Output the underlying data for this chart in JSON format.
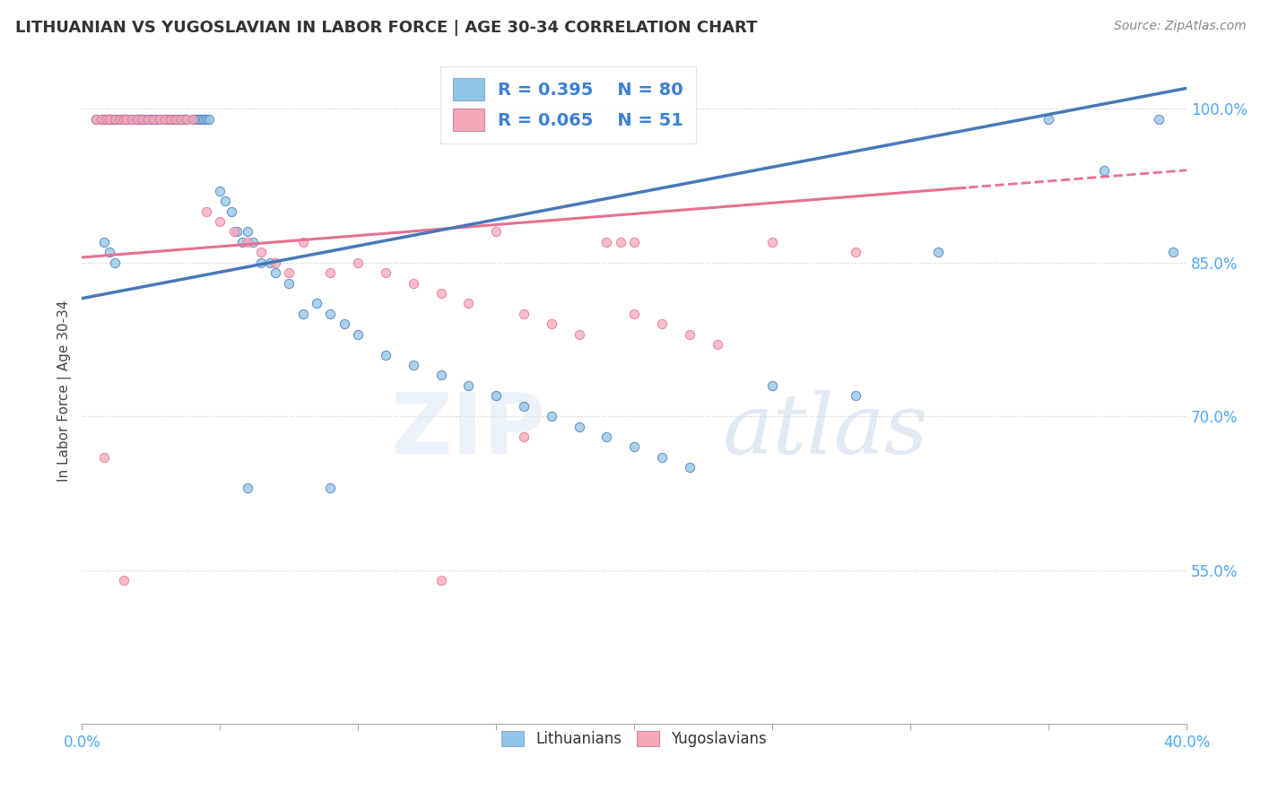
{
  "title": "LITHUANIAN VS YUGOSLAVIAN IN LABOR FORCE | AGE 30-34 CORRELATION CHART",
  "source": "Source: ZipAtlas.com",
  "ylabel": "In Labor Force | Age 30-34",
  "xlim": [
    0.0,
    0.4
  ],
  "ylim": [
    0.4,
    1.05
  ],
  "yticks": [
    0.55,
    0.7,
    0.85,
    1.0
  ],
  "ytick_labels": [
    "55.0%",
    "70.0%",
    "85.0%",
    "100.0%"
  ],
  "xticks": [
    0.0,
    0.05,
    0.1,
    0.15,
    0.2,
    0.25,
    0.3,
    0.35,
    0.4
  ],
  "xtick_left_label": "0.0%",
  "xtick_right_label": "40.0%",
  "background_color": "#ffffff",
  "legend_r_blue": "R = 0.395",
  "legend_n_blue": "N = 80",
  "legend_r_pink": "R = 0.065",
  "legend_n_pink": "N = 51",
  "blue_color": "#90c4e8",
  "pink_color": "#f4a8b8",
  "blue_line_color": "#4878b8",
  "pink_line_color": "#e87090",
  "dot_size": 55,
  "blue_x": [
    0.005,
    0.007,
    0.008,
    0.009,
    0.01,
    0.01,
    0.011,
    0.012,
    0.013,
    0.014,
    0.015,
    0.016,
    0.018,
    0.02,
    0.02,
    0.021,
    0.022,
    0.023,
    0.024,
    0.025,
    0.025,
    0.026,
    0.027,
    0.028,
    0.03,
    0.031,
    0.032,
    0.033,
    0.034,
    0.035,
    0.036,
    0.037,
    0.038,
    0.04,
    0.041,
    0.042,
    0.043,
    0.044,
    0.045,
    0.046,
    0.05,
    0.052,
    0.054,
    0.056,
    0.058,
    0.06,
    0.062,
    0.065,
    0.068,
    0.07,
    0.075,
    0.08,
    0.085,
    0.09,
    0.095,
    0.1,
    0.11,
    0.12,
    0.13,
    0.14,
    0.15,
    0.16,
    0.17,
    0.18,
    0.19,
    0.2,
    0.21,
    0.22,
    0.25,
    0.28,
    0.31,
    0.35,
    0.37,
    0.39,
    0.395,
    0.008,
    0.01,
    0.012,
    0.06,
    0.09
  ],
  "blue_y": [
    0.99,
    0.99,
    0.99,
    0.99,
    0.99,
    0.99,
    0.99,
    0.99,
    0.99,
    0.99,
    0.99,
    0.99,
    0.99,
    0.99,
    0.99,
    0.99,
    0.99,
    0.99,
    0.99,
    0.99,
    0.99,
    0.99,
    0.99,
    0.99,
    0.99,
    0.99,
    0.99,
    0.99,
    0.99,
    0.99,
    0.99,
    0.99,
    0.99,
    0.99,
    0.99,
    0.99,
    0.99,
    0.99,
    0.99,
    0.99,
    0.92,
    0.91,
    0.9,
    0.88,
    0.87,
    0.88,
    0.87,
    0.85,
    0.85,
    0.84,
    0.83,
    0.8,
    0.81,
    0.8,
    0.79,
    0.78,
    0.76,
    0.75,
    0.74,
    0.73,
    0.72,
    0.71,
    0.7,
    0.69,
    0.68,
    0.67,
    0.66,
    0.65,
    0.73,
    0.72,
    0.86,
    0.99,
    0.94,
    0.99,
    0.86,
    0.87,
    0.86,
    0.85,
    0.63,
    0.63
  ],
  "pink_x": [
    0.005,
    0.007,
    0.009,
    0.01,
    0.012,
    0.014,
    0.015,
    0.016,
    0.018,
    0.02,
    0.022,
    0.024,
    0.026,
    0.028,
    0.03,
    0.032,
    0.034,
    0.036,
    0.038,
    0.04,
    0.045,
    0.05,
    0.055,
    0.06,
    0.065,
    0.07,
    0.075,
    0.08,
    0.09,
    0.1,
    0.11,
    0.12,
    0.13,
    0.14,
    0.15,
    0.16,
    0.17,
    0.18,
    0.19,
    0.2,
    0.21,
    0.22,
    0.23,
    0.25,
    0.28,
    0.008,
    0.015,
    0.13,
    0.2,
    0.16,
    0.195
  ],
  "pink_y": [
    0.99,
    0.99,
    0.99,
    0.99,
    0.99,
    0.99,
    0.99,
    0.99,
    0.99,
    0.99,
    0.99,
    0.99,
    0.99,
    0.99,
    0.99,
    0.99,
    0.99,
    0.99,
    0.99,
    0.99,
    0.9,
    0.89,
    0.88,
    0.87,
    0.86,
    0.85,
    0.84,
    0.87,
    0.84,
    0.85,
    0.84,
    0.83,
    0.82,
    0.81,
    0.88,
    0.8,
    0.79,
    0.78,
    0.87,
    0.8,
    0.79,
    0.78,
    0.77,
    0.87,
    0.86,
    0.66,
    0.54,
    0.54,
    0.87,
    0.68,
    0.87
  ]
}
